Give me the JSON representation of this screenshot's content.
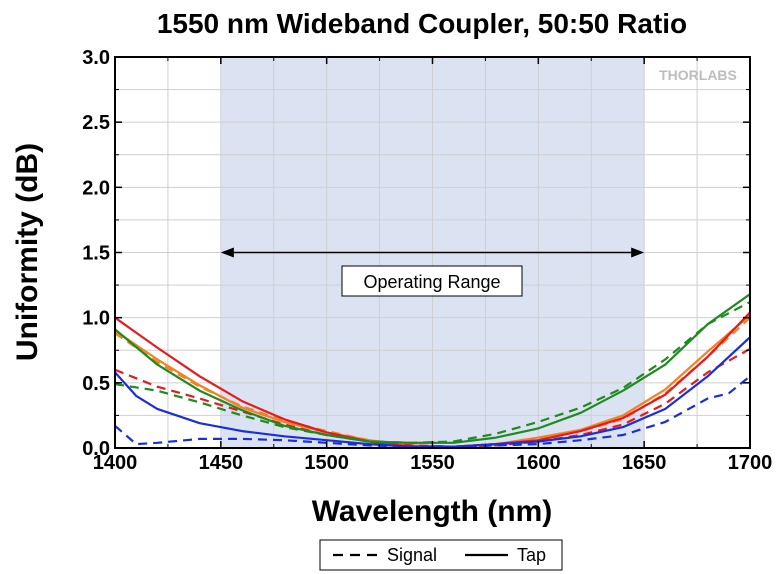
{
  "chart_data": {
    "type": "line",
    "title": "1550 nm Wideband Coupler, 50:50 Ratio",
    "xlabel": "Wavelength (nm)",
    "ylabel": "Uniformity (dB)",
    "xlim": [
      1400,
      1700
    ],
    "ylim": [
      0,
      3.0
    ],
    "xticks": [
      "1400",
      "1450",
      "1500",
      "1550",
      "1600",
      "1650",
      "1700"
    ],
    "yticks": [
      "0.0",
      "0.5",
      "1.0",
      "1.5",
      "2.0",
      "2.5",
      "3.0"
    ],
    "grid": true,
    "shaded_range": [
      1450,
      1650
    ],
    "shaded_color": "#dbe3f3",
    "annotation": "Operating Range",
    "logo": "THORLABS",
    "legend": {
      "position": "bottom-center",
      "items": [
        {
          "label": "Signal",
          "style": "dashed"
        },
        {
          "label": "Tap",
          "style": "solid"
        }
      ]
    },
    "series": [
      {
        "color": "#f58220",
        "style": "solid",
        "x": [
          1400,
          1420,
          1440,
          1460,
          1480,
          1500,
          1520,
          1540,
          1560,
          1580,
          1600,
          1620,
          1640,
          1660,
          1680,
          1700
        ],
        "y": [
          0.9,
          0.68,
          0.48,
          0.31,
          0.2,
          0.12,
          0.06,
          0.02,
          0.01,
          0.03,
          0.08,
          0.14,
          0.25,
          0.45,
          0.74,
          1.02
        ]
      },
      {
        "color": "#f58220",
        "style": "dashed",
        "x": [
          1400,
          1420,
          1440,
          1460,
          1480,
          1500,
          1520,
          1540,
          1560,
          1580,
          1600,
          1620,
          1640,
          1660,
          1680,
          1700
        ],
        "y": [
          0.88,
          0.66,
          0.47,
          0.32,
          0.21,
          0.13,
          0.06,
          0.02,
          0.01,
          0.03,
          0.07,
          0.13,
          0.22,
          0.42,
          0.7,
          1.0
        ]
      },
      {
        "color": "#e8191f",
        "style": "solid",
        "x": [
          1400,
          1420,
          1440,
          1460,
          1480,
          1500,
          1520,
          1540,
          1560,
          1580,
          1600,
          1620,
          1640,
          1660,
          1680,
          1700
        ],
        "y": [
          1.0,
          0.77,
          0.55,
          0.36,
          0.22,
          0.12,
          0.05,
          0.01,
          0.01,
          0.03,
          0.06,
          0.13,
          0.23,
          0.41,
          0.7,
          1.04
        ]
      },
      {
        "color": "#e8191f",
        "style": "dashed",
        "x": [
          1400,
          1420,
          1440,
          1460,
          1480,
          1500,
          1520,
          1540,
          1560,
          1580,
          1600,
          1620,
          1640,
          1660,
          1680,
          1700
        ],
        "y": [
          0.6,
          0.47,
          0.38,
          0.28,
          0.18,
          0.1,
          0.05,
          0.02,
          0.01,
          0.02,
          0.05,
          0.1,
          0.18,
          0.34,
          0.58,
          0.76
        ]
      },
      {
        "color": "#1f8a1f",
        "style": "solid",
        "x": [
          1400,
          1420,
          1440,
          1460,
          1480,
          1500,
          1520,
          1540,
          1560,
          1580,
          1600,
          1620,
          1640,
          1660,
          1680,
          1700
        ],
        "y": [
          0.91,
          0.64,
          0.44,
          0.29,
          0.17,
          0.1,
          0.05,
          0.04,
          0.04,
          0.08,
          0.15,
          0.27,
          0.44,
          0.64,
          0.95,
          1.18
        ]
      },
      {
        "color": "#1f8a1f",
        "style": "dashed",
        "x": [
          1400,
          1420,
          1440,
          1460,
          1480,
          1500,
          1520,
          1540,
          1560,
          1580,
          1600,
          1620,
          1640,
          1660,
          1680,
          1700
        ],
        "y": [
          0.49,
          0.44,
          0.35,
          0.25,
          0.16,
          0.1,
          0.05,
          0.04,
          0.05,
          0.11,
          0.2,
          0.31,
          0.46,
          0.68,
          0.95,
          1.12
        ]
      },
      {
        "color": "#1a2fd6",
        "style": "solid",
        "x": [
          1400,
          1410,
          1420,
          1440,
          1460,
          1480,
          1500,
          1520,
          1540,
          1560,
          1580,
          1600,
          1620,
          1640,
          1660,
          1680,
          1700
        ],
        "y": [
          0.58,
          0.4,
          0.3,
          0.19,
          0.13,
          0.09,
          0.06,
          0.03,
          0.01,
          0.01,
          0.03,
          0.05,
          0.09,
          0.16,
          0.3,
          0.55,
          0.85
        ]
      },
      {
        "color": "#1a2fd6",
        "style": "dashed",
        "x": [
          1400,
          1410,
          1420,
          1440,
          1460,
          1480,
          1500,
          1520,
          1540,
          1560,
          1580,
          1600,
          1620,
          1640,
          1660,
          1680,
          1690,
          1700
        ],
        "y": [
          0.17,
          0.03,
          0.04,
          0.07,
          0.07,
          0.06,
          0.04,
          0.02,
          0.01,
          0.01,
          0.02,
          0.03,
          0.06,
          0.1,
          0.2,
          0.38,
          0.42,
          0.55
        ]
      }
    ]
  }
}
